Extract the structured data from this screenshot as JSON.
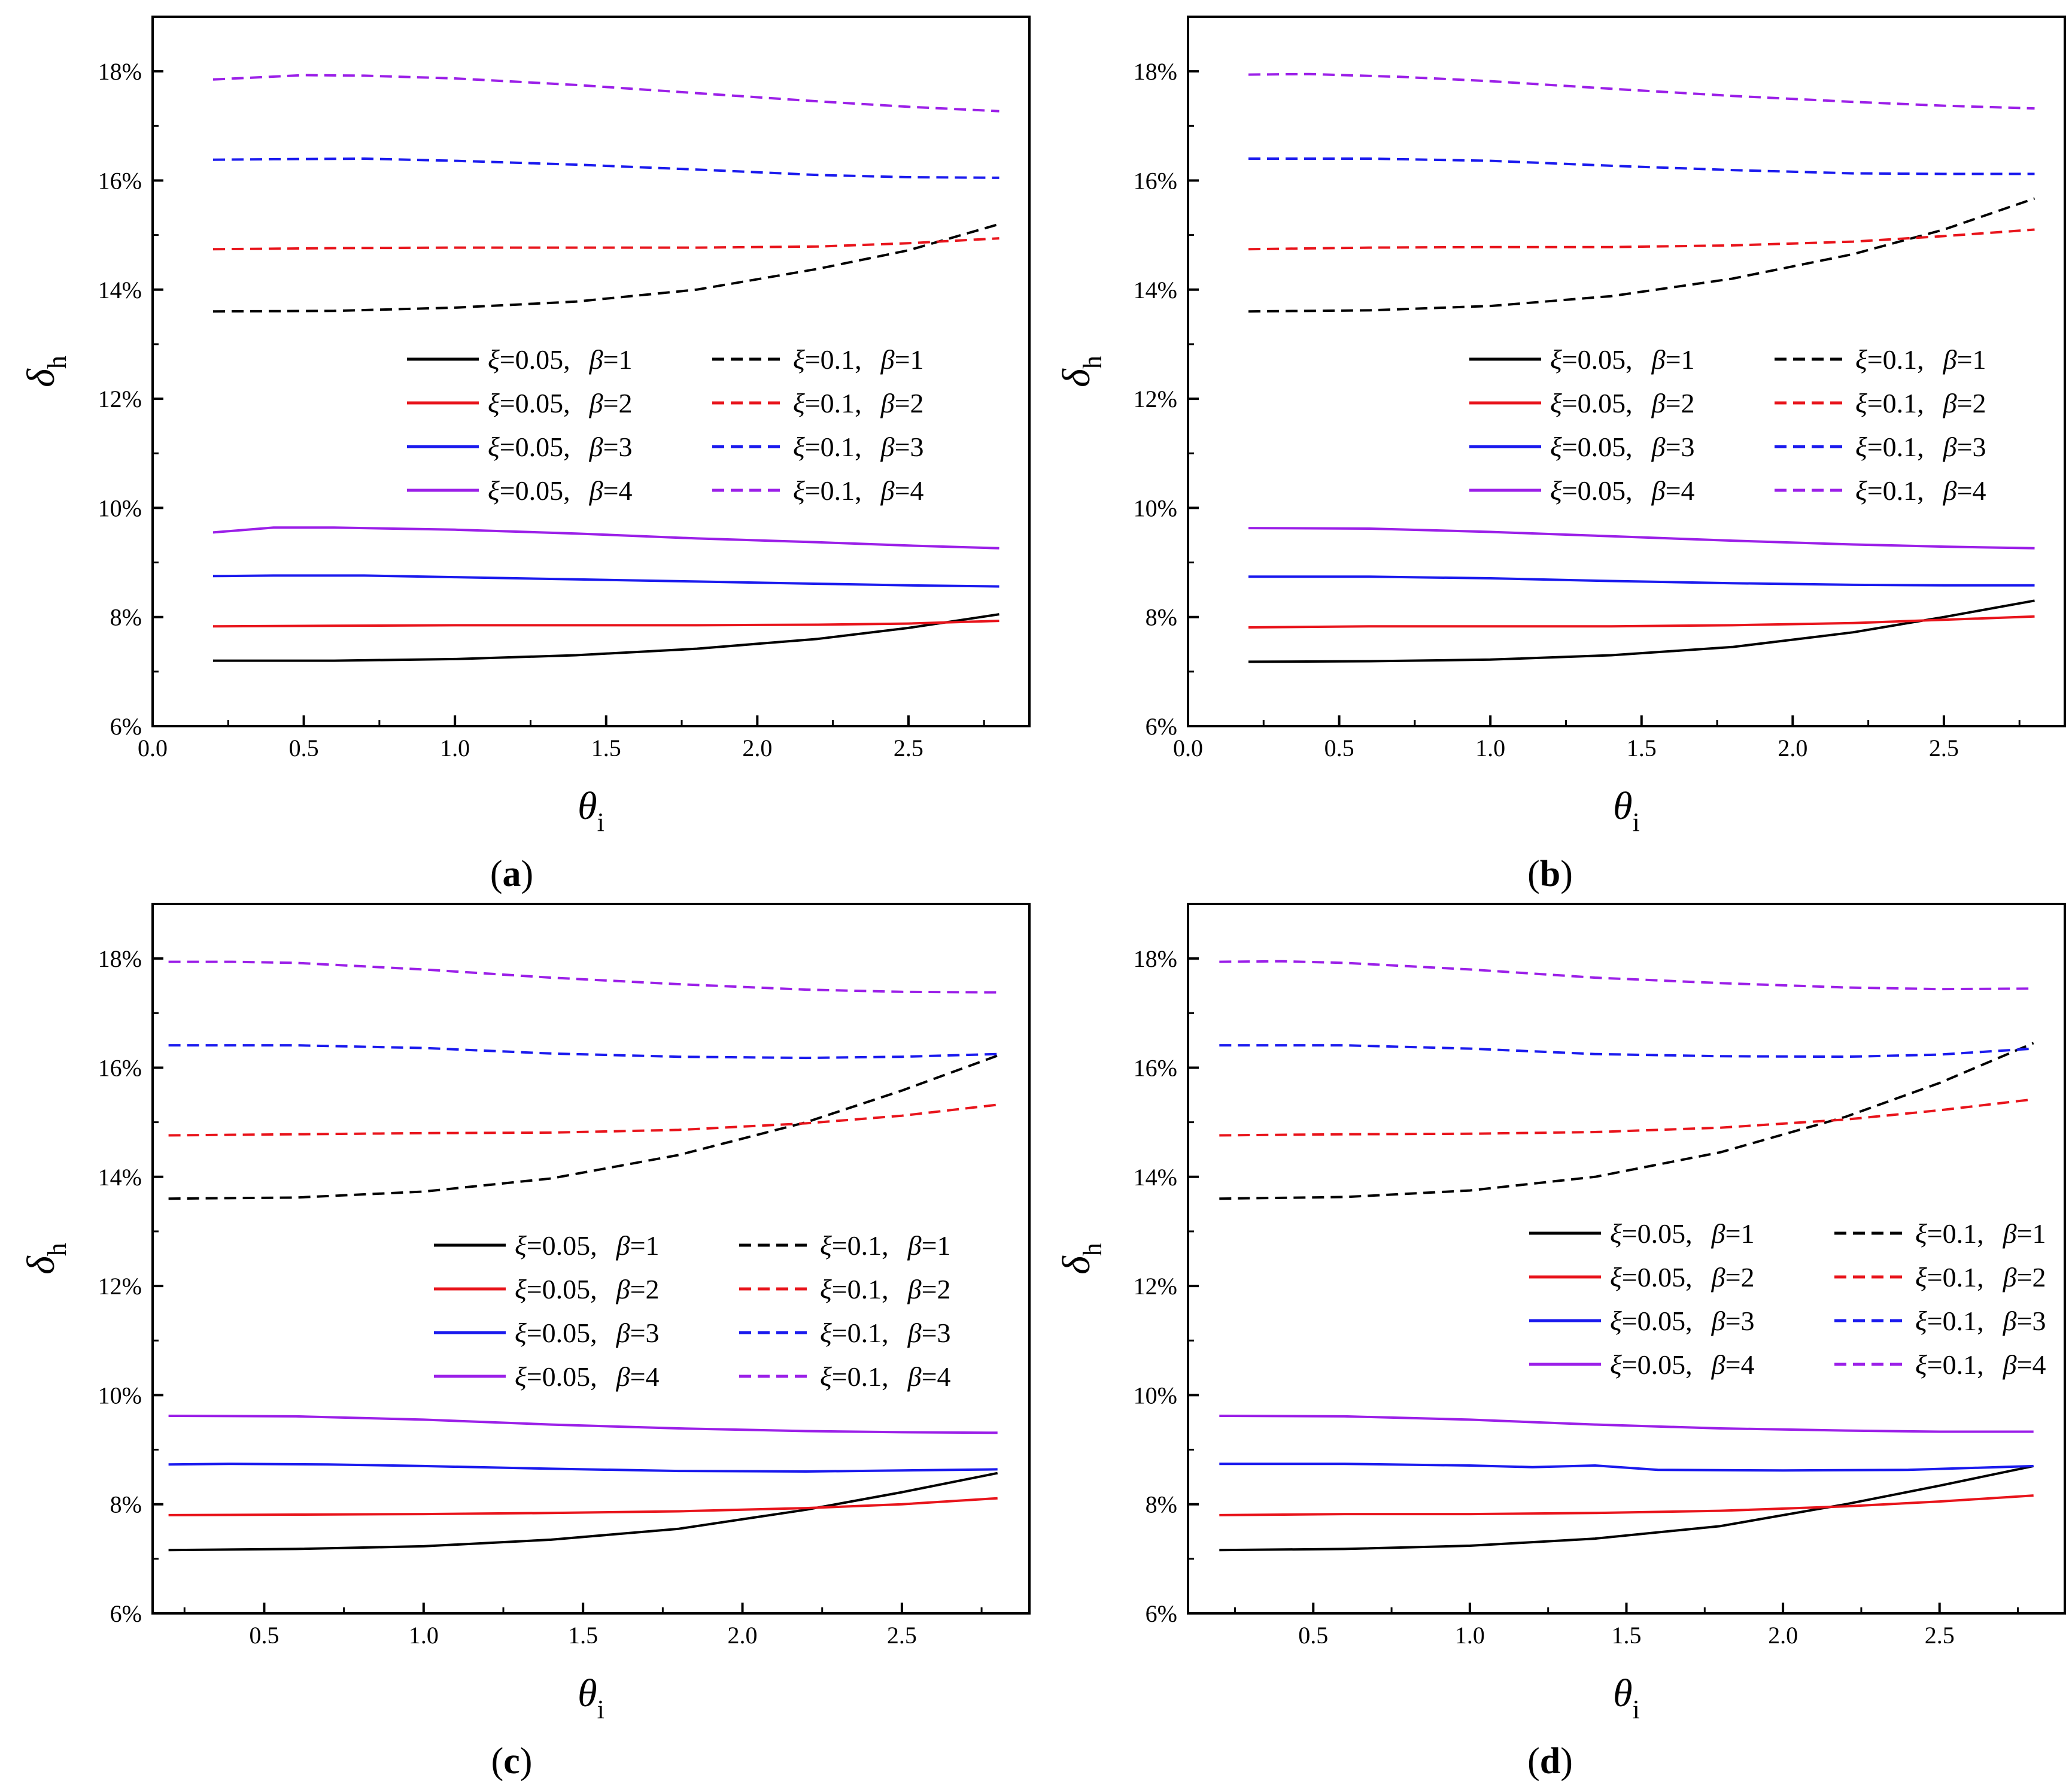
{
  "chart_data": [
    {
      "panel": "a",
      "caption_letter": "a",
      "type": "line",
      "xlabel": "θ",
      "xlabel_sub": "i",
      "ylabel": "δ",
      "ylabel_sub": "h",
      "xlim": [
        0.0,
        2.9
      ],
      "ylim": [
        6,
        19
      ],
      "xticks": [
        "0.0",
        "0.5",
        "1.0",
        "1.5",
        "2.0",
        "2.5"
      ],
      "yticks": [
        "6%",
        "8%",
        "10%",
        "12%",
        "14%",
        "16%",
        "18%"
      ],
      "legend_position": "center-right",
      "series": [
        {
          "name": "ξ=0.05,  β=1",
          "xi": "0.05",
          "beta": "1",
          "color": "#000000",
          "dashed": false,
          "x": [
            0.2,
            0.6,
            1.0,
            1.4,
            1.8,
            2.2,
            2.5,
            2.8
          ],
          "y": [
            7.2,
            7.2,
            7.23,
            7.3,
            7.42,
            7.6,
            7.8,
            8.05
          ]
        },
        {
          "name": "ξ=0.05,  β=2",
          "xi": "0.05",
          "beta": "2",
          "color": "#e8141b",
          "dashed": false,
          "x": [
            0.2,
            0.6,
            1.0,
            1.4,
            1.8,
            2.2,
            2.5,
            2.8
          ],
          "y": [
            7.83,
            7.84,
            7.85,
            7.85,
            7.85,
            7.86,
            7.88,
            7.93
          ]
        },
        {
          "name": "ξ=0.05,  β=3",
          "xi": "0.05",
          "beta": "3",
          "color": "#1a1aee",
          "dashed": false,
          "x": [
            0.2,
            0.4,
            0.7,
            1.0,
            1.4,
            1.8,
            2.2,
            2.5,
            2.8
          ],
          "y": [
            8.75,
            8.76,
            8.76,
            8.73,
            8.69,
            8.65,
            8.61,
            8.58,
            8.56
          ]
        },
        {
          "name": "ξ=0.05,  β=4",
          "xi": "0.05",
          "beta": "4",
          "color": "#9b1fe8",
          "dashed": false,
          "x": [
            0.2,
            0.4,
            0.6,
            1.0,
            1.4,
            1.8,
            2.2,
            2.5,
            2.8
          ],
          "y": [
            9.55,
            9.64,
            9.64,
            9.6,
            9.53,
            9.44,
            9.37,
            9.31,
            9.26
          ]
        },
        {
          "name": "ξ=0.1,  β=1",
          "xi": "0.1",
          "beta": "1",
          "color": "#000000",
          "dashed": true,
          "x": [
            0.2,
            0.6,
            1.0,
            1.4,
            1.8,
            2.2,
            2.5,
            2.8
          ],
          "y": [
            13.6,
            13.61,
            13.67,
            13.78,
            14.0,
            14.38,
            14.72,
            15.2
          ]
        },
        {
          "name": "ξ=0.1,  β=2",
          "xi": "0.1",
          "beta": "2",
          "color": "#e8141b",
          "dashed": true,
          "x": [
            0.2,
            0.6,
            1.0,
            1.4,
            1.8,
            2.2,
            2.5,
            2.8
          ],
          "y": [
            14.74,
            14.76,
            14.77,
            14.77,
            14.77,
            14.79,
            14.85,
            14.94
          ]
        },
        {
          "name": "ξ=0.1,  β=3",
          "xi": "0.1",
          "beta": "3",
          "color": "#1a1aee",
          "dashed": true,
          "x": [
            0.2,
            0.4,
            0.7,
            1.0,
            1.4,
            1.8,
            2.2,
            2.5,
            2.8
          ],
          "y": [
            16.38,
            16.39,
            16.4,
            16.36,
            16.29,
            16.2,
            16.1,
            16.06,
            16.05
          ]
        },
        {
          "name": "ξ=0.1,  β=4",
          "xi": "0.1",
          "beta": "4",
          "color": "#9b1fe8",
          "dashed": true,
          "x": [
            0.2,
            0.5,
            0.7,
            1.0,
            1.4,
            1.8,
            2.2,
            2.5,
            2.8
          ],
          "y": [
            17.85,
            17.93,
            17.92,
            17.87,
            17.75,
            17.6,
            17.45,
            17.35,
            17.27
          ]
        }
      ]
    },
    {
      "panel": "b",
      "caption_letter": "b",
      "type": "line",
      "xlabel": "θ",
      "xlabel_sub": "i",
      "ylabel": "δ",
      "ylabel_sub": "h",
      "xlim": [
        0.0,
        2.9
      ],
      "ylim": [
        6,
        19
      ],
      "xticks": [
        "0.0",
        "0.5",
        "1.0",
        "1.5",
        "2.0",
        "2.5"
      ],
      "yticks": [
        "6%",
        "8%",
        "10%",
        "12%",
        "14%",
        "16%",
        "18%"
      ],
      "legend_position": "center-right",
      "series": [
        {
          "name": "ξ=0.05,  β=1",
          "xi": "0.05",
          "beta": "1",
          "color": "#000000",
          "dashed": false,
          "x": [
            0.2,
            0.6,
            1.0,
            1.4,
            1.8,
            2.2,
            2.5,
            2.8
          ],
          "y": [
            7.18,
            7.19,
            7.22,
            7.3,
            7.45,
            7.72,
            8.0,
            8.3
          ]
        },
        {
          "name": "ξ=0.05,  β=2",
          "xi": "0.05",
          "beta": "2",
          "color": "#e8141b",
          "dashed": false,
          "x": [
            0.2,
            0.6,
            1.0,
            1.4,
            1.8,
            2.2,
            2.5,
            2.8
          ],
          "y": [
            7.81,
            7.83,
            7.83,
            7.83,
            7.85,
            7.89,
            7.95,
            8.01
          ]
        },
        {
          "name": "ξ=0.05,  β=3",
          "xi": "0.05",
          "beta": "3",
          "color": "#1a1aee",
          "dashed": false,
          "x": [
            0.2,
            0.6,
            1.0,
            1.4,
            1.8,
            2.2,
            2.5,
            2.8
          ],
          "y": [
            8.74,
            8.74,
            8.71,
            8.66,
            8.62,
            8.59,
            8.58,
            8.58
          ]
        },
        {
          "name": "ξ=0.05,  β=4",
          "xi": "0.05",
          "beta": "4",
          "color": "#9b1fe8",
          "dashed": false,
          "x": [
            0.2,
            0.6,
            1.0,
            1.4,
            1.8,
            2.2,
            2.5,
            2.8
          ],
          "y": [
            9.63,
            9.62,
            9.56,
            9.48,
            9.4,
            9.33,
            9.29,
            9.26
          ]
        },
        {
          "name": "ξ=0.1,  β=1",
          "xi": "0.1",
          "beta": "1",
          "color": "#000000",
          "dashed": true,
          "x": [
            0.2,
            0.6,
            1.0,
            1.4,
            1.8,
            2.2,
            2.5,
            2.8
          ],
          "y": [
            13.6,
            13.62,
            13.7,
            13.88,
            14.2,
            14.65,
            15.1,
            15.67
          ]
        },
        {
          "name": "ξ=0.1,  β=2",
          "xi": "0.1",
          "beta": "2",
          "color": "#e8141b",
          "dashed": true,
          "x": [
            0.2,
            0.6,
            1.0,
            1.4,
            1.8,
            2.2,
            2.5,
            2.8
          ],
          "y": [
            14.74,
            14.77,
            14.78,
            14.78,
            14.81,
            14.88,
            14.98,
            15.1
          ]
        },
        {
          "name": "ξ=0.1,  β=3",
          "xi": "0.1",
          "beta": "3",
          "color": "#1a1aee",
          "dashed": true,
          "x": [
            0.2,
            0.6,
            1.0,
            1.4,
            1.8,
            2.2,
            2.5,
            2.8
          ],
          "y": [
            16.4,
            16.4,
            16.36,
            16.27,
            16.19,
            16.13,
            16.12,
            16.12
          ]
        },
        {
          "name": "ξ=0.1,  β=4",
          "xi": "0.1",
          "beta": "4",
          "color": "#9b1fe8",
          "dashed": true,
          "x": [
            0.2,
            0.4,
            0.7,
            1.0,
            1.4,
            1.8,
            2.2,
            2.5,
            2.8
          ],
          "y": [
            17.94,
            17.95,
            17.9,
            17.82,
            17.68,
            17.55,
            17.44,
            17.37,
            17.32
          ]
        }
      ]
    },
    {
      "panel": "c",
      "caption_letter": "c",
      "type": "line",
      "xlabel": "θ",
      "xlabel_sub": "i",
      "ylabel": "δ",
      "ylabel_sub": "h",
      "xlim": [
        0.15,
        2.9
      ],
      "ylim": [
        6,
        19
      ],
      "xticks": [
        "0.5",
        "1.0",
        "1.5",
        "2.0",
        "2.5"
      ],
      "yticks": [
        "6%",
        "8%",
        "10%",
        "12%",
        "14%",
        "16%",
        "18%"
      ],
      "legend_position": "center-right",
      "series": [
        {
          "name": "ξ=0.05,  β=1",
          "xi": "0.05",
          "beta": "1",
          "color": "#000000",
          "dashed": false,
          "x": [
            0.2,
            0.6,
            1.0,
            1.4,
            1.8,
            2.2,
            2.5,
            2.8
          ],
          "y": [
            7.16,
            7.18,
            7.23,
            7.35,
            7.55,
            7.9,
            8.22,
            8.57
          ]
        },
        {
          "name": "ξ=0.05,  β=2",
          "xi": "0.05",
          "beta": "2",
          "color": "#e8141b",
          "dashed": false,
          "x": [
            0.2,
            0.6,
            1.0,
            1.4,
            1.8,
            2.2,
            2.5,
            2.8
          ],
          "y": [
            7.8,
            7.81,
            7.82,
            7.84,
            7.87,
            7.93,
            8.0,
            8.11
          ]
        },
        {
          "name": "ξ=0.05,  β=3",
          "xi": "0.05",
          "beta": "3",
          "color": "#1a1aee",
          "dashed": false,
          "x": [
            0.2,
            0.4,
            0.7,
            1.0,
            1.4,
            1.8,
            2.2,
            2.5,
            2.8
          ],
          "y": [
            8.73,
            8.74,
            8.73,
            8.7,
            8.65,
            8.61,
            8.6,
            8.62,
            8.64
          ]
        },
        {
          "name": "ξ=0.05,  β=4",
          "xi": "0.05",
          "beta": "4",
          "color": "#9b1fe8",
          "dashed": false,
          "x": [
            0.2,
            0.6,
            1.0,
            1.4,
            1.8,
            2.2,
            2.5,
            2.8
          ],
          "y": [
            9.62,
            9.61,
            9.55,
            9.46,
            9.39,
            9.34,
            9.32,
            9.31
          ]
        },
        {
          "name": "ξ=0.1,  β=1",
          "xi": "0.1",
          "beta": "1",
          "color": "#000000",
          "dashed": true,
          "x": [
            0.2,
            0.6,
            1.0,
            1.4,
            1.8,
            2.2,
            2.5,
            2.8
          ],
          "y": [
            13.6,
            13.62,
            13.73,
            13.97,
            14.4,
            15.0,
            15.58,
            16.22
          ]
        },
        {
          "name": "ξ=0.1,  β=2",
          "xi": "0.1",
          "beta": "2",
          "color": "#e8141b",
          "dashed": true,
          "x": [
            0.2,
            0.6,
            1.0,
            1.4,
            1.8,
            2.2,
            2.5,
            2.8
          ],
          "y": [
            14.76,
            14.78,
            14.8,
            14.81,
            14.86,
            14.98,
            15.12,
            15.32
          ]
        },
        {
          "name": "ξ=0.1,  β=3",
          "xi": "0.1",
          "beta": "3",
          "color": "#1a1aee",
          "dashed": true,
          "x": [
            0.2,
            0.6,
            1.0,
            1.4,
            1.8,
            2.2,
            2.5,
            2.8
          ],
          "y": [
            16.41,
            16.41,
            16.36,
            16.26,
            16.2,
            16.18,
            16.2,
            16.25
          ]
        },
        {
          "name": "ξ=0.1,  β=4",
          "xi": "0.1",
          "beta": "4",
          "color": "#9b1fe8",
          "dashed": true,
          "x": [
            0.2,
            0.4,
            0.6,
            1.0,
            1.4,
            1.8,
            2.2,
            2.5,
            2.8
          ],
          "y": [
            17.94,
            17.94,
            17.92,
            17.8,
            17.65,
            17.53,
            17.43,
            17.39,
            17.38
          ]
        }
      ]
    },
    {
      "panel": "d",
      "caption_letter": "d",
      "type": "line",
      "xlabel": "θ",
      "xlabel_sub": "i",
      "ylabel": "δ",
      "ylabel_sub": "h",
      "xlim": [
        0.1,
        2.9
      ],
      "ylim": [
        6,
        19
      ],
      "xticks": [
        "0.5",
        "1.0",
        "1.5",
        "2.0",
        "2.5"
      ],
      "yticks": [
        "6%",
        "8%",
        "10%",
        "12%",
        "14%",
        "16%",
        "18%"
      ],
      "legend_position": "center-right",
      "series": [
        {
          "name": "ξ=0.05,  β=1",
          "xi": "0.05",
          "beta": "1",
          "color": "#000000",
          "dashed": false,
          "x": [
            0.2,
            0.6,
            1.0,
            1.4,
            1.8,
            2.2,
            2.5,
            2.8
          ],
          "y": [
            7.16,
            7.18,
            7.24,
            7.37,
            7.6,
            8.0,
            8.34,
            8.7
          ]
        },
        {
          "name": "ξ=0.05,  β=2",
          "xi": "0.05",
          "beta": "2",
          "color": "#e8141b",
          "dashed": false,
          "x": [
            0.2,
            0.6,
            1.0,
            1.4,
            1.8,
            2.2,
            2.5,
            2.8
          ],
          "y": [
            7.8,
            7.82,
            7.82,
            7.84,
            7.88,
            7.96,
            8.05,
            8.16
          ]
        },
        {
          "name": "ξ=0.05,  β=3",
          "xi": "0.05",
          "beta": "3",
          "color": "#1a1aee",
          "dashed": false,
          "x": [
            0.2,
            0.6,
            1.0,
            1.2,
            1.4,
            1.6,
            2.0,
            2.4,
            2.8
          ],
          "y": [
            8.74,
            8.74,
            8.71,
            8.68,
            8.71,
            8.63,
            8.62,
            8.63,
            8.7
          ]
        },
        {
          "name": "ξ=0.05,  β=4",
          "xi": "0.05",
          "beta": "4",
          "color": "#9b1fe8",
          "dashed": false,
          "x": [
            0.2,
            0.6,
            1.0,
            1.4,
            1.8,
            2.2,
            2.5,
            2.8
          ],
          "y": [
            9.62,
            9.61,
            9.55,
            9.46,
            9.39,
            9.35,
            9.33,
            9.33
          ]
        },
        {
          "name": "ξ=0.1,  β=1",
          "xi": "0.1",
          "beta": "1",
          "color": "#000000",
          "dashed": true,
          "x": [
            0.2,
            0.6,
            1.0,
            1.4,
            1.8,
            2.2,
            2.5,
            2.8
          ],
          "y": [
            13.6,
            13.63,
            13.75,
            14.0,
            14.45,
            15.1,
            15.72,
            16.45
          ]
        },
        {
          "name": "ξ=0.1,  β=2",
          "xi": "0.1",
          "beta": "2",
          "color": "#e8141b",
          "dashed": true,
          "x": [
            0.2,
            0.6,
            1.0,
            1.4,
            1.8,
            2.2,
            2.5,
            2.8
          ],
          "y": [
            14.76,
            14.78,
            14.79,
            14.82,
            14.9,
            15.05,
            15.22,
            15.42
          ]
        },
        {
          "name": "ξ=0.1,  β=3",
          "xi": "0.1",
          "beta": "3",
          "color": "#1a1aee",
          "dashed": true,
          "x": [
            0.2,
            0.6,
            1.0,
            1.4,
            1.8,
            2.2,
            2.5,
            2.8
          ],
          "y": [
            16.41,
            16.41,
            16.35,
            16.25,
            16.21,
            16.2,
            16.24,
            16.35
          ]
        },
        {
          "name": "ξ=0.1,  β=4",
          "xi": "0.1",
          "beta": "4",
          "color": "#9b1fe8",
          "dashed": true,
          "x": [
            0.2,
            0.4,
            0.6,
            1.0,
            1.4,
            1.8,
            2.2,
            2.5,
            2.8
          ],
          "y": [
            17.94,
            17.95,
            17.92,
            17.8,
            17.65,
            17.55,
            17.47,
            17.44,
            17.45
          ]
        }
      ]
    }
  ]
}
